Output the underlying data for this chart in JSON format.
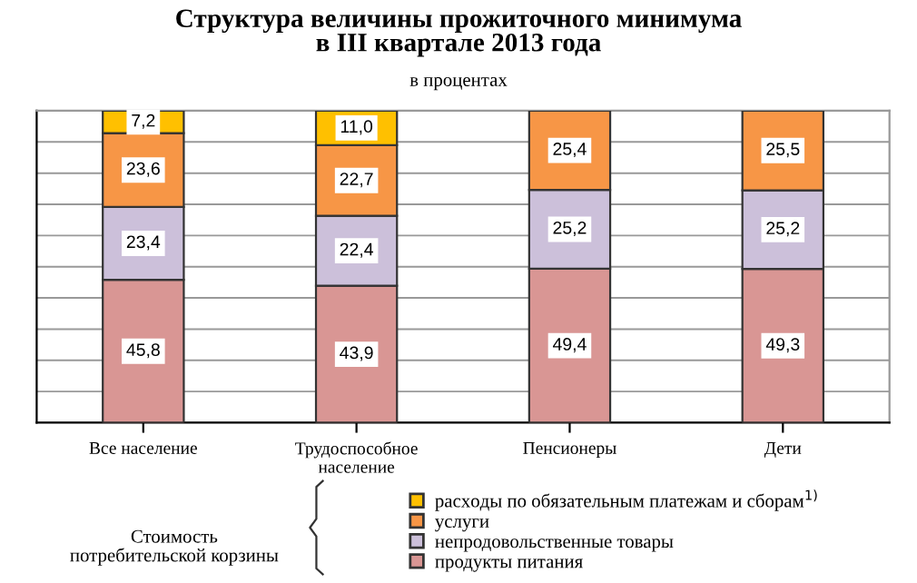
{
  "chart_data": {
    "type": "bar",
    "stacked": true,
    "title": "Структура величины прожиточного минимума\nв III квартале 2013 года",
    "subtitle": "в процентах",
    "categories": [
      "Все население",
      "Трудоспособное\nнаселение",
      "Пенсионеры",
      "Дети"
    ],
    "series": [
      {
        "name": "продукты питания",
        "color": "#d99694",
        "values": [
          45.8,
          43.9,
          49.4,
          49.3
        ],
        "value_labels": [
          "45,8",
          "43,9",
          "49,4",
          "49,3"
        ]
      },
      {
        "name": "непродовольственные товары",
        "color": "#ccc0da",
        "values": [
          23.4,
          22.4,
          25.2,
          25.2
        ],
        "value_labels": [
          "23,4",
          "22,4",
          "25,2",
          "25,2"
        ]
      },
      {
        "name": "услуги",
        "color": "#f79646",
        "values": [
          23.6,
          22.7,
          25.4,
          25.5
        ],
        "value_labels": [
          "23,6",
          "22,7",
          "25,4",
          "25,5"
        ]
      },
      {
        "name": "расходы по обязательным платежам и сборам$^{1)}$",
        "color": "#ffc000",
        "values": [
          7.2,
          11.0,
          null,
          null
        ],
        "value_labels": [
          "7,2",
          "11,0",
          null,
          null
        ]
      }
    ],
    "tick_labels": "x",
    "grid": "y",
    "legend": "bottom",
    "annotations": [
      "Стоимость\nпотребительской корзины"
    ]
  }
}
